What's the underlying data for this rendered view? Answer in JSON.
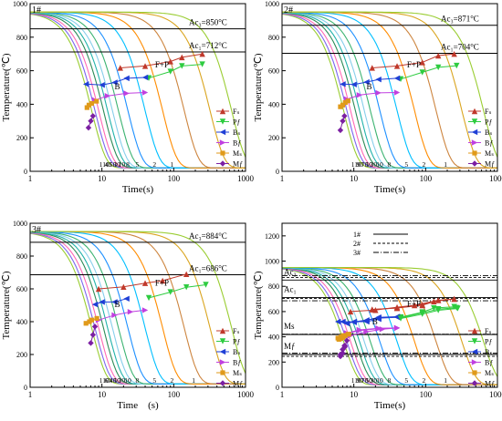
{
  "legend_labels": [
    "Fₛ",
    "Pƒ",
    "Bₛ",
    "Bƒ",
    "Mₛ",
    "Mƒ"
  ],
  "legend_colors": [
    "#c0392b",
    "#2ecc40",
    "#1f3fd6",
    "#c040e0",
    "#e09a1a",
    "#7b1fa2"
  ],
  "curve_colors": [
    "#9acd32",
    "#7b68ee",
    "#ff69b4",
    "#2e8b57",
    "#20b2aa",
    "#87ceeb",
    "#3cb371",
    "#1e90ff",
    "#00bfff",
    "#ff8c00",
    "#cd853f",
    "#daa520"
  ],
  "cooling_rate_labels": [
    "110",
    "60",
    "40",
    "70",
    "50",
    "30",
    "10",
    "8",
    "5",
    "2",
    "1"
  ],
  "chart_data": [
    {
      "type": "line",
      "title": "1#",
      "xlabel": "Time(s)",
      "ylabel": "Temperature(℃)",
      "xscale": "log",
      "xlim": [
        1,
        1000
      ],
      "ylim": [
        0,
        1000
      ],
      "xticks": [
        "1",
        "10",
        "100",
        "1000"
      ],
      "yticks": [
        "0",
        "200",
        "400",
        "600",
        "800",
        "1000"
      ],
      "ac3_label": "Ac₃=850°C",
      "ac1_label": "Ac₁=712°C",
      "ac3": 850,
      "ac1": 712,
      "cooling_t0": [
        7.2,
        8.0,
        9.0,
        10.5,
        12,
        14,
        17,
        23,
        40,
        70,
        140,
        320,
        640
      ],
      "series": [
        {
          "name": "Fₛ",
          "x": [
            18,
            40,
            90,
            130,
            250
          ],
          "y": [
            617,
            628,
            655,
            680,
            700
          ]
        },
        {
          "name": "Pƒ",
          "x": [
            45,
            90,
            130,
            250
          ],
          "y": [
            556,
            595,
            628,
            638
          ]
        },
        {
          "name": "Bₛ",
          "x": [
            6,
            10,
            15,
            22,
            40
          ],
          "y": [
            520,
            515,
            530,
            555,
            560
          ]
        },
        {
          "name": "Bƒ",
          "x": [
            8,
            12,
            22,
            40
          ],
          "y": [
            425,
            450,
            465,
            470
          ]
        },
        {
          "name": "Mₛ",
          "x": [
            6.2,
            6.6,
            7.2,
            8.4
          ],
          "y": [
            380,
            395,
            405,
            418
          ]
        },
        {
          "name": "Mƒ",
          "x": [
            6.5,
            7.0,
            7.5
          ],
          "y": [
            260,
            300,
            330
          ]
        }
      ],
      "region_labels": [
        "F+P",
        "B"
      ],
      "rate_labels": [
        "110",
        "40",
        "50",
        "30",
        "10",
        "8",
        "5",
        "2",
        "1"
      ]
    },
    {
      "type": "line",
      "title": "2#",
      "xlabel": "Time(s)",
      "ylabel": "Temperature(℃)",
      "xscale": "log",
      "xlim": [
        1,
        1000
      ],
      "ylim": [
        0,
        1000
      ],
      "xticks": [
        "1",
        "10",
        "100",
        "1000"
      ],
      "yticks": [
        "0",
        "200",
        "400",
        "600",
        "800",
        "1000"
      ],
      "ac3_label": "Ac₃=871°C",
      "ac1_label": "Ac₁=704°C",
      "ac3": 871,
      "ac1": 704,
      "cooling_t0": [
        7.2,
        8.0,
        9.0,
        10.5,
        12,
        14,
        17,
        23,
        40,
        70,
        140,
        320,
        640
      ],
      "series": [
        {
          "name": "Fₛ",
          "x": [
            18,
            40,
            90,
            150,
            250
          ],
          "y": [
            617,
            628,
            650,
            690,
            700
          ]
        },
        {
          "name": "Pƒ",
          "x": [
            45,
            90,
            150,
            270
          ],
          "y": [
            550,
            590,
            620,
            630
          ]
        },
        {
          "name": "Bₛ",
          "x": [
            7,
            10,
            15,
            22,
            40
          ],
          "y": [
            520,
            518,
            532,
            548,
            555
          ]
        },
        {
          "name": "Bƒ",
          "x": [
            8,
            12,
            22,
            40
          ],
          "y": [
            430,
            455,
            468,
            470
          ]
        },
        {
          "name": "Mₛ",
          "x": [
            6.5,
            7.0,
            7.6,
            8.3
          ],
          "y": [
            385,
            395,
            410,
            420
          ]
        },
        {
          "name": "Mƒ",
          "x": [
            6.5,
            7.0,
            7.4
          ],
          "y": [
            245,
            300,
            330
          ]
        }
      ],
      "region_labels": [
        "F+P",
        "B"
      ],
      "rate_labels": [
        "110",
        "90",
        "70",
        "50",
        "30",
        "10",
        "8",
        "5",
        "2",
        "1"
      ]
    },
    {
      "type": "line",
      "title": "3#",
      "xlabel": "Time　(s)",
      "ylabel": "Temperature(℃)",
      "xscale": "log",
      "xlim": [
        1,
        1000
      ],
      "ylim": [
        0,
        1000
      ],
      "xticks": [
        "1",
        "10",
        "100",
        "1000"
      ],
      "yticks": [
        "0",
        "200",
        "400",
        "600",
        "800",
        "1000"
      ],
      "ac3_label": "Ac₃=884°C",
      "ac1_label": "Ac₁=686°C",
      "ac3": 884,
      "ac1": 686,
      "cooling_t0": [
        7.2,
        8.0,
        9.0,
        10.5,
        12,
        14,
        17,
        23,
        40,
        70,
        140,
        320,
        640
      ],
      "series": [
        {
          "name": "Fₛ",
          "x": [
            9,
            20,
            40,
            70,
            150
          ],
          "y": [
            600,
            612,
            635,
            650,
            690
          ]
        },
        {
          "name": "Pƒ",
          "x": [
            45,
            90,
            150,
            280
          ],
          "y": [
            545,
            580,
            610,
            625
          ]
        },
        {
          "name": "Bₛ",
          "x": [
            8,
            10,
            15,
            22
          ],
          "y": [
            505,
            520,
            520,
            540
          ]
        },
        {
          "name": "Bƒ",
          "x": [
            9,
            15,
            25,
            40
          ],
          "y": [
            410,
            440,
            460,
            470
          ]
        },
        {
          "name": "Mₛ",
          "x": [
            6.0,
            6.7,
            7.2,
            8.5
          ],
          "y": [
            390,
            400,
            410,
            420
          ]
        },
        {
          "name": "Mƒ",
          "x": [
            7.0,
            7.5,
            8.0
          ],
          "y": [
            270,
            320,
            370
          ]
        }
      ],
      "region_labels": [
        "F+P",
        "B"
      ],
      "rate_labels": [
        "110",
        "60",
        "40",
        "50",
        "30",
        "10",
        "8",
        "5",
        "2",
        "1"
      ]
    },
    {
      "type": "line",
      "title": "",
      "xlabel": "Time(s)",
      "ylabel": "Temperature(℃)",
      "xscale": "log",
      "xlim": [
        1,
        1000
      ],
      "ylim": [
        0,
        1300
      ],
      "xticks": [
        "1",
        "10",
        "100",
        "1000"
      ],
      "yticks": [
        "0",
        "200",
        "400",
        "600",
        "800",
        "1000",
        "1200"
      ],
      "steel_legend": [
        "1#",
        "2#",
        "3#"
      ],
      "ref_labels": [
        "Ac₃",
        "Ac₁",
        "Ms",
        "Mƒ"
      ],
      "ac3": [
        850,
        871,
        884
      ],
      "ac1": [
        712,
        704,
        686
      ],
      "ms": [
        418,
        420,
        420
      ],
      "mf": [
        260,
        245,
        270
      ],
      "cooling_t0": [
        7.2,
        8.0,
        9.0,
        10.5,
        12,
        14,
        17,
        23,
        40,
        70,
        140,
        320,
        640
      ],
      "region_labels": [
        "F+P",
        "B"
      ],
      "rate_labels": [
        "110",
        "90",
        "70",
        "50",
        "30",
        "10",
        "8",
        "5",
        "2",
        "1"
      ]
    }
  ]
}
